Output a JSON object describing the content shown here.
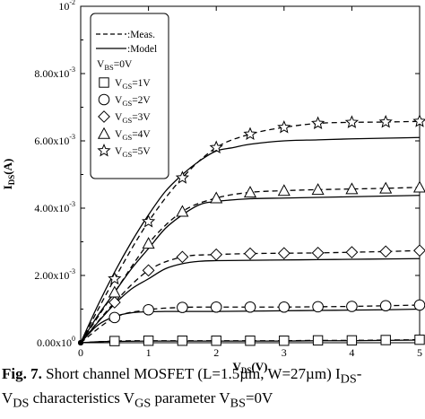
{
  "chart_data": {
    "type": "line",
    "xlabel": {
      "main": "V",
      "sub": "DS",
      "rest": "(V)"
    },
    "ylabel": {
      "main": "I",
      "sub": "DS",
      "rest": "(A)"
    },
    "xlim": [
      0,
      5
    ],
    "ylim": [
      0,
      0.01
    ],
    "x_ticks": [
      0,
      1,
      2,
      3,
      4,
      5
    ],
    "x_tick_labels": [
      "0",
      "1",
      "2",
      "3",
      "4",
      "5"
    ],
    "y_ticks": [
      0,
      0.002,
      0.004,
      0.006,
      0.008,
      0.01
    ],
    "y_tick_labels": [
      {
        "m": "0.00x10",
        "e": "0"
      },
      {
        "m": "2.00x10",
        "e": "-3"
      },
      {
        "m": "4.00x10",
        "e": "-3"
      },
      {
        "m": "6.00x10",
        "e": "-3"
      },
      {
        "m": "8.00x10",
        "e": "-3"
      },
      {
        "m": "10",
        "e": "-2"
      }
    ],
    "grid": false,
    "legend_position": "top-left",
    "legend": {
      "meas_label": ":Meas.",
      "model_label": ":Model",
      "vbs": {
        "main": "V",
        "sub": "BS",
        "rest": "=0V"
      }
    },
    "series": [
      {
        "name": "VGS=1V",
        "label_main": "V",
        "label_sub": "GS",
        "label_rest": "=1V",
        "marker": "square",
        "meas": {
          "x": [
            0,
            0.5,
            1,
            1.5,
            2,
            2.5,
            3,
            3.5,
            4,
            4.5,
            5
          ],
          "y": [
            0,
            5e-05,
            6e-05,
            6e-05,
            6e-05,
            6e-05,
            6e-05,
            7e-05,
            7e-05,
            8e-05,
            9e-05
          ]
        },
        "model": {
          "x": [
            0,
            0.25,
            0.5,
            1,
            1.5,
            2,
            2.5,
            3,
            3.5,
            4,
            4.5,
            5
          ],
          "y": [
            0,
            3e-05,
            4e-05,
            5e-05,
            5e-05,
            5e-05,
            5e-05,
            5e-05,
            6e-05,
            6e-05,
            7e-05,
            8e-05
          ]
        }
      },
      {
        "name": "VGS=2V",
        "label_main": "V",
        "label_sub": "GS",
        "label_rest": "=2V",
        "marker": "circle",
        "meas": {
          "x": [
            0,
            0.5,
            1,
            1.5,
            2,
            2.5,
            3,
            3.5,
            4,
            4.5,
            5
          ],
          "y": [
            0,
            0.00075,
            0.00098,
            0.00105,
            0.00106,
            0.00106,
            0.00106,
            0.00107,
            0.00108,
            0.0011,
            0.00112
          ]
        },
        "model": {
          "x": [
            0,
            0.25,
            0.5,
            0.75,
            1,
            1.25,
            1.5,
            2,
            2.5,
            3,
            3.5,
            4,
            4.5,
            5
          ],
          "y": [
            0,
            0.00052,
            0.00078,
            0.00089,
            0.00092,
            0.00093,
            0.00093,
            0.00093,
            0.00094,
            0.00095,
            0.00096,
            0.00097,
            0.00098,
            0.001
          ]
        }
      },
      {
        "name": "VGS=3V",
        "label_main": "V",
        "label_sub": "GS",
        "label_rest": "=3V",
        "marker": "diamond",
        "meas": {
          "x": [
            0,
            0.5,
            1,
            1.5,
            2,
            2.5,
            3,
            3.5,
            4,
            4.5,
            5
          ],
          "y": [
            0,
            0.0012,
            0.00215,
            0.00255,
            0.00262,
            0.00265,
            0.00266,
            0.00267,
            0.00269,
            0.00271,
            0.00274
          ]
        },
        "model": {
          "x": [
            0,
            0.25,
            0.5,
            0.75,
            1,
            1.25,
            1.5,
            1.75,
            2,
            2.5,
            3,
            3.5,
            4,
            4.5,
            5
          ],
          "y": [
            0,
            0.0006,
            0.00115,
            0.0016,
            0.0019,
            0.0022,
            0.00235,
            0.00242,
            0.00244,
            0.00245,
            0.00246,
            0.00247,
            0.00248,
            0.00249,
            0.0025
          ]
        }
      },
      {
        "name": "VGS=4V",
        "label_main": "V",
        "label_sub": "GS",
        "label_rest": "=4V",
        "marker": "triangle",
        "meas": {
          "x": [
            0,
            0.5,
            1,
            1.5,
            2,
            2.5,
            3,
            3.5,
            4,
            4.5,
            5
          ],
          "y": [
            0,
            0.0015,
            0.00295,
            0.0039,
            0.0043,
            0.00447,
            0.00452,
            0.00455,
            0.00457,
            0.00459,
            0.00462
          ]
        },
        "model": {
          "x": [
            0,
            0.25,
            0.5,
            0.75,
            1,
            1.25,
            1.5,
            1.75,
            2,
            2.5,
            3,
            3.5,
            4,
            4.5,
            5
          ],
          "y": [
            0,
            0.0008,
            0.0015,
            0.0022,
            0.0028,
            0.0034,
            0.0038,
            0.0041,
            0.0042,
            0.00428,
            0.0043,
            0.00432,
            0.00434,
            0.00436,
            0.00438
          ]
        }
      },
      {
        "name": "VGS=5V",
        "label_main": "V",
        "label_sub": "GS",
        "label_rest": "=5V",
        "marker": "star",
        "meas": {
          "x": [
            0,
            0.5,
            1,
            1.5,
            2,
            2.5,
            3,
            3.5,
            4,
            4.5,
            5
          ],
          "y": [
            0,
            0.0019,
            0.0036,
            0.0049,
            0.0058,
            0.0062,
            0.0064,
            0.00652,
            0.00655,
            0.00656,
            0.00658
          ]
        },
        "model": {
          "x": [
            0,
            0.25,
            0.5,
            0.75,
            1,
            1.25,
            1.5,
            1.75,
            2,
            2.25,
            2.5,
            3,
            3.5,
            4,
            4.5,
            5
          ],
          "y": [
            0,
            0.0011,
            0.0021,
            0.003,
            0.0038,
            0.0045,
            0.005,
            0.0054,
            0.0057,
            0.0058,
            0.0059,
            0.006,
            0.00603,
            0.00606,
            0.00608,
            0.0061
          ]
        }
      }
    ]
  },
  "caption": {
    "fig_label": "Fig. 7.",
    "line1_text": " Short channel MOSFET (L=1.5µm, W=27µm) I",
    "line1_sub": "DS",
    "line1_end": "-",
    "line2_a": "V",
    "line2_a_sub": "DS",
    "line2_b": " characteristics V",
    "line2_b_sub": "GS",
    "line2_c": " parameter V",
    "line2_c_sub": "BS",
    "line2_d": "=0V"
  }
}
